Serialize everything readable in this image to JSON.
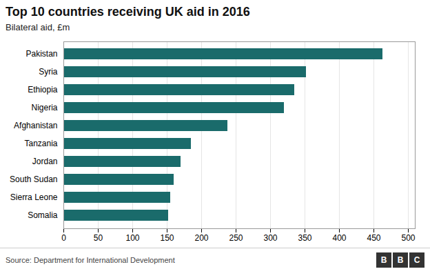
{
  "chart_data": {
    "type": "bar",
    "orientation": "horizontal",
    "title": "Top 10 countries receiving UK aid in 2016",
    "subtitle": "Bilateral aid, £m",
    "source": "Source: Department for International Development",
    "logo": [
      "B",
      "B",
      "C"
    ],
    "categories": [
      "Somalia",
      "Sierra Leone",
      "South Sudan",
      "Jordan",
      "Tanzania",
      "Afghanistan",
      "Nigeria",
      "Ethiopia",
      "Syria",
      "Pakistan"
    ],
    "values": [
      152,
      155,
      160,
      170,
      185,
      238,
      320,
      335,
      352,
      463
    ],
    "color": "#1a6b6b",
    "xlim": [
      0,
      510
    ],
    "xticks": [
      0,
      50,
      100,
      150,
      200,
      250,
      300,
      350,
      400,
      450,
      500
    ],
    "grid": true
  }
}
